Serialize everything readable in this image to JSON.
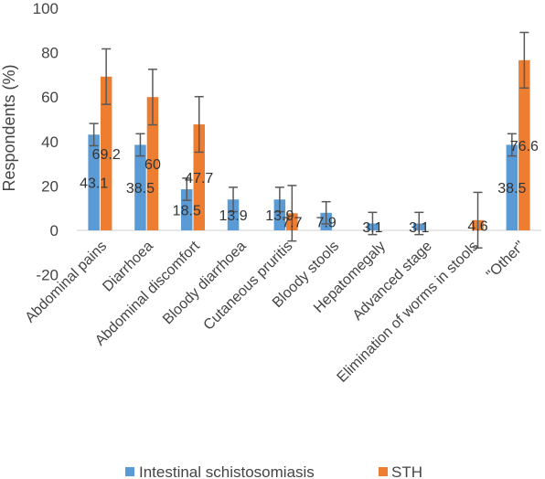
{
  "chart_data": {
    "type": "bar",
    "ylabel": "Respondents (%)",
    "ylim": [
      -20,
      100
    ],
    "yticks": [
      -20,
      0,
      20,
      40,
      60,
      80,
      100
    ],
    "grid": false,
    "legend_position": "bottom",
    "categories": [
      "Abdominal pains",
      "Diarrhoea",
      "Abdominal discomfort",
      "Bloody diarrhoea",
      "Cutaneous pruritis",
      "Bloody stools",
      "Hepatomegaly",
      "Advanced stage",
      "Elimination of worms in stools",
      "\"Other\""
    ],
    "series": [
      {
        "name": "Intestinal schistosomiasis",
        "color": "#5B9BD5",
        "values": [
          43.1,
          38.5,
          18.5,
          13.9,
          13.9,
          7.9,
          3.1,
          3.1,
          null,
          38.5
        ],
        "labels": [
          "43.1",
          "38.5",
          "18.5",
          "13.9",
          "13.9",
          "7.9",
          "3.1",
          "3.1",
          "",
          "38.5"
        ],
        "error": [
          5,
          5,
          5,
          5.5,
          5.5,
          5,
          5,
          5,
          null,
          5
        ]
      },
      {
        "name": "STH",
        "color": "#ED7D31",
        "values": [
          69.2,
          60,
          47.7,
          null,
          7.7,
          null,
          null,
          null,
          4.6,
          76.6
        ],
        "labels": [
          "69.2",
          "60",
          "47.7",
          "",
          "7.7",
          "",
          "",
          "",
          "4.6",
          "76.6"
        ],
        "error": [
          12.5,
          12.5,
          12.5,
          null,
          12.5,
          null,
          null,
          null,
          12.5,
          12.5
        ]
      }
    ]
  }
}
